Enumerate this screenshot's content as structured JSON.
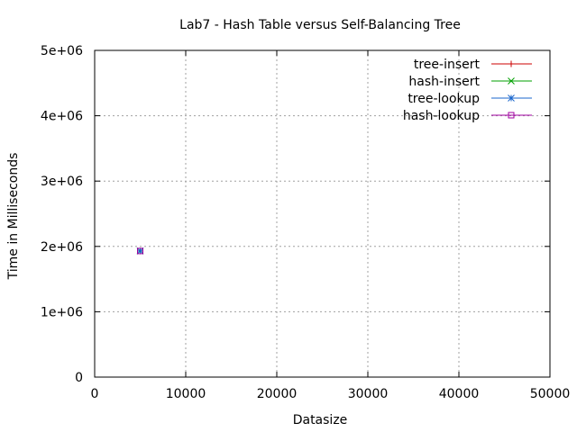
{
  "chart_data": {
    "type": "scatter",
    "title": "Lab7 - Hash Table versus Self-Balancing Tree",
    "xlabel": "Datasize",
    "ylabel": "Time in Milliseconds",
    "xlim": [
      0,
      50000
    ],
    "ylim": [
      0,
      5000000
    ],
    "x_ticks": [
      0,
      10000,
      20000,
      30000,
      40000,
      50000
    ],
    "x_tick_labels": [
      "0",
      "10000",
      "20000",
      "30000",
      "40000",
      "50000"
    ],
    "y_ticks": [
      0,
      1000000,
      2000000,
      3000000,
      4000000,
      5000000
    ],
    "y_tick_labels": [
      "0",
      "1e+06",
      "2e+06",
      "3e+06",
      "4e+06",
      "5e+06"
    ],
    "grid": true,
    "legend_position": "top-right",
    "series": [
      {
        "name": "tree-insert",
        "color": "#cc0000",
        "marker": "plus",
        "points": [
          {
            "x": 5000,
            "y": 1930000
          }
        ]
      },
      {
        "name": "hash-insert",
        "color": "#00a000",
        "marker": "cross",
        "points": [
          {
            "x": 5000,
            "y": 1930000
          }
        ]
      },
      {
        "name": "tree-lookup",
        "color": "#1a66cc",
        "marker": "star",
        "points": [
          {
            "x": 5000,
            "y": 1930000
          }
        ]
      },
      {
        "name": "hash-lookup",
        "color": "#a000a0",
        "marker": "square",
        "points": [
          {
            "x": 5000,
            "y": 1930000
          }
        ]
      }
    ]
  }
}
